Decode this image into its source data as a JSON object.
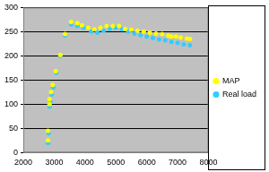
{
  "chart_data": {
    "type": "scatter",
    "series": [
      {
        "name": "MAP",
        "color": "#ffff00",
        "marker": "circle",
        "x": [
          2800,
          2800,
          2850,
          2850,
          2900,
          2950,
          3050,
          3200,
          3350,
          3550,
          3750,
          3900,
          4100,
          4300,
          4500,
          4700,
          4900,
          5100,
          5300,
          5500,
          5700,
          5900,
          6100,
          6300,
          6500,
          6700,
          6800,
          6950,
          7100,
          7300,
          7400
        ],
        "values": [
          25,
          45,
          100,
          110,
          125,
          140,
          168,
          202,
          245,
          270,
          268,
          263,
          258,
          255,
          258,
          262,
          262,
          262,
          256,
          254,
          252,
          250,
          248,
          246,
          245,
          242,
          240,
          240,
          238,
          236,
          235
        ]
      },
      {
        "name": "Real load",
        "color": "#33ccff",
        "marker": "circle",
        "x": [
          2800,
          2820,
          2850,
          2880,
          2920,
          2970,
          3070,
          3200,
          3350,
          3550,
          3750,
          3950,
          4200,
          4400,
          4600,
          4800,
          5000,
          5200,
          5400,
          5600,
          5800,
          6000,
          6200,
          6400,
          6600,
          6800,
          7000,
          7200,
          7400
        ],
        "values": [
          20,
          40,
          95,
          105,
          120,
          135,
          165,
          200,
          242,
          265,
          262,
          258,
          250,
          248,
          252,
          256,
          258,
          255,
          250,
          246,
          243,
          240,
          237,
          234,
          232,
          229,
          227,
          224,
          222
        ]
      }
    ],
    "xlim": [
      2000,
      8000
    ],
    "xticks": [
      2000,
      3000,
      4000,
      5000,
      6000,
      7000,
      8000
    ],
    "ylim": [
      0,
      300
    ],
    "yticks": [
      0,
      50,
      100,
      150,
      200,
      250,
      300
    ],
    "grid": "y",
    "legend": "right"
  }
}
